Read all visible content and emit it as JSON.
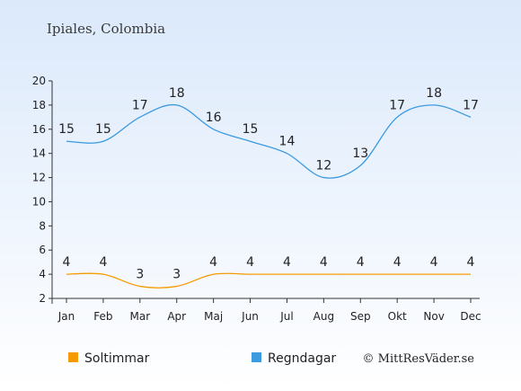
{
  "header": {
    "location": "Ipiales, Colombia"
  },
  "credit": "© MittResVäder.se",
  "colors": {
    "sun": "#f59a00",
    "rain": "#3b9ae0",
    "axis": "#333333"
  },
  "chart_data": {
    "type": "line",
    "title": "Ipiales, Colombia",
    "categories": [
      "Jan",
      "Feb",
      "Mar",
      "Apr",
      "Maj",
      "Jun",
      "Jul",
      "Aug",
      "Sep",
      "Okt",
      "Nov",
      "Dec"
    ],
    "ylim": [
      2,
      20
    ],
    "yticks": [
      2,
      4,
      6,
      8,
      10,
      12,
      14,
      16,
      18,
      20
    ],
    "grid": false,
    "legend_placement": "bottom-left",
    "series": [
      {
        "name": "Soltimmar",
        "color": "#f59a00",
        "values": [
          4,
          4,
          3,
          3,
          4,
          4,
          4,
          4,
          4,
          4,
          4,
          4
        ]
      },
      {
        "name": "Regndagar",
        "color": "#3b9ae0",
        "values": [
          15,
          15,
          17,
          18,
          16,
          15,
          14,
          12,
          13,
          17,
          18,
          17
        ]
      }
    ]
  }
}
